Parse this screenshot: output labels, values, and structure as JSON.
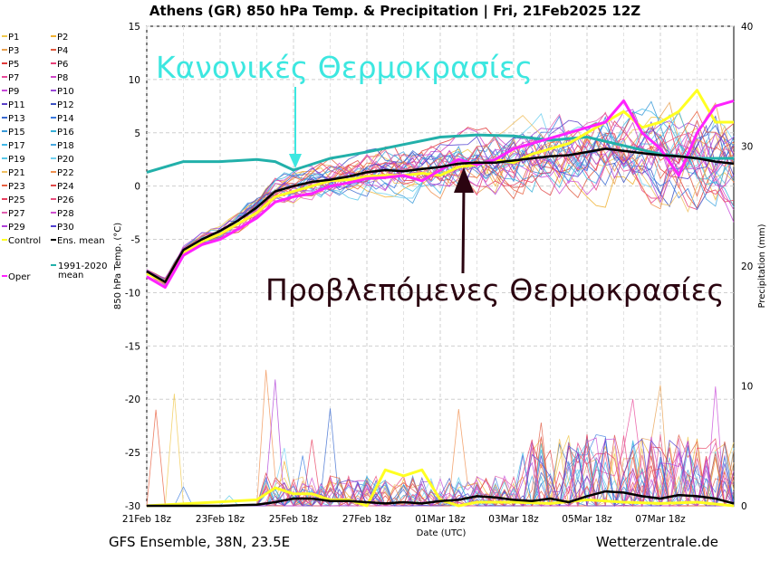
{
  "title": "Athens  (GR)  850 hPa Temp. & Precipitation | Fri, 21Feb2025 12Z",
  "footer_left": "GFS Ensemble, 38N, 23.5E",
  "footer_right": "Wetterzentrale.de",
  "colors": {
    "oper": "#ff22ff",
    "control": "#ffff22",
    "ens_mean": "#000000",
    "climate_mean": "#22b0aa",
    "annotation_normal": "#3de7e0",
    "annotation_forecast": "#2b0410"
  },
  "annotations": {
    "normal": "Κανονικές Θερμοκρασίες",
    "forecast": "Προβλεπόμενες Θερμοκρασίες"
  },
  "chart_data": {
    "type": "line",
    "xlabel": "Date (UTC)",
    "ylabel_left": "850 hPa Temp. (°C)",
    "ylabel_right": "Precipitation (mm)",
    "ylim_left": [
      -30,
      15
    ],
    "ylim_right": [
      0,
      40
    ],
    "yticks_left": [
      15,
      10,
      5,
      0,
      -5,
      -10,
      -15,
      -20,
      -25,
      -30
    ],
    "yticks_right": [
      40,
      30,
      20,
      10,
      0
    ],
    "x_tick_labels": [
      "21Feb 18z",
      "23Feb 18z",
      "25Feb 18z",
      "27Feb 18z",
      "01Mar 18z",
      "03Mar 18z",
      "05Mar 18z",
      "07Mar 18z"
    ],
    "grid": true,
    "legend_placement": "left",
    "legend": [
      {
        "name": "P1",
        "color": "#f0c84c"
      },
      {
        "name": "P2",
        "color": "#f0b030"
      },
      {
        "name": "P3",
        "color": "#e8a050"
      },
      {
        "name": "P4",
        "color": "#e05a40"
      },
      {
        "name": "P5",
        "color": "#e03a3a"
      },
      {
        "name": "P6",
        "color": "#e8407a"
      },
      {
        "name": "P7",
        "color": "#e84a9a"
      },
      {
        "name": "P8",
        "color": "#d048c8"
      },
      {
        "name": "P9",
        "color": "#c84ad8"
      },
      {
        "name": "P10",
        "color": "#9a48d8"
      },
      {
        "name": "P11",
        "color": "#5a40c8"
      },
      {
        "name": "P12",
        "color": "#3a50c0"
      },
      {
        "name": "P13",
        "color": "#3a6ad0"
      },
      {
        "name": "P14",
        "color": "#3a7ae0"
      },
      {
        "name": "P15",
        "color": "#3a9ad8"
      },
      {
        "name": "P16",
        "color": "#38b0d8"
      },
      {
        "name": "P17",
        "color": "#40b8e8"
      },
      {
        "name": "P18",
        "color": "#48a8e0"
      },
      {
        "name": "P19",
        "color": "#58c8e8"
      },
      {
        "name": "P20",
        "color": "#70d0f0"
      },
      {
        "name": "P21",
        "color": "#f0c060"
      },
      {
        "name": "P22",
        "color": "#f09050"
      },
      {
        "name": "P23",
        "color": "#e86040"
      },
      {
        "name": "P24",
        "color": "#e04848"
      },
      {
        "name": "P25",
        "color": "#e84060"
      },
      {
        "name": "P26",
        "color": "#e85080"
      },
      {
        "name": "P27",
        "color": "#e060b0"
      },
      {
        "name": "P28",
        "color": "#d050d0"
      },
      {
        "name": "P29",
        "color": "#b040d8"
      },
      {
        "name": "P30",
        "color": "#5040d0"
      },
      {
        "name": "Control",
        "color": "#ffff22"
      },
      {
        "name": "Ens. mean",
        "color": "#000000"
      },
      {
        "name": "Oper",
        "color": "#ff22ff"
      },
      {
        "name": "1991-2020 mean",
        "color": "#22b0aa"
      }
    ],
    "series": [
      {
        "name": "Ens. mean",
        "unit": "C",
        "x": [
          0,
          0.5,
          1,
          1.5,
          2,
          2.5,
          3,
          3.5,
          4,
          4.5,
          5,
          5.5,
          6,
          6.5,
          7,
          7.5,
          8,
          8.5,
          9,
          9.5,
          10,
          10.5,
          11,
          11.5,
          12,
          12.5,
          13,
          13.5,
          14,
          14.5,
          15,
          15.5,
          16
        ],
        "values": [
          -8,
          -9,
          -6,
          -5,
          -4.2,
          -3.2,
          -2,
          -0.5,
          0,
          0.4,
          0.6,
          0.9,
          1.3,
          1.5,
          1.4,
          1.6,
          1.8,
          2.1,
          2.2,
          2.2,
          2.4,
          2.6,
          2.8,
          2.9,
          3.2,
          3.5,
          3.3,
          3.1,
          2.9,
          2.8,
          2.6,
          2.3,
          2.1
        ]
      },
      {
        "name": "Oper",
        "unit": "C",
        "x": [
          0,
          0.5,
          1,
          1.5,
          2,
          2.5,
          3,
          3.5,
          4,
          4.5,
          5,
          5.5,
          6,
          6.5,
          7,
          7.5,
          8,
          8.5,
          9,
          9.5,
          10,
          10.5,
          11,
          11.5,
          12,
          12.5,
          13,
          13.5,
          14,
          14.5,
          15,
          15.5,
          16
        ],
        "values": [
          -8.5,
          -9.5,
          -6.5,
          -5.5,
          -5,
          -4,
          -3,
          -1.5,
          -1,
          -0.7,
          0,
          0.3,
          0.7,
          0.8,
          1,
          0.5,
          1.5,
          2.5,
          2,
          2.5,
          3.5,
          4,
          4.5,
          5,
          5.5,
          6,
          8,
          5,
          3.5,
          1,
          5,
          7.5,
          8
        ]
      },
      {
        "name": "Control",
        "unit": "C",
        "x": [
          0,
          0.5,
          1,
          1.5,
          2,
          2.5,
          3,
          3.5,
          4,
          4.5,
          5,
          5.5,
          6,
          6.5,
          7,
          7.5,
          8,
          8.5,
          9,
          9.5,
          10,
          10.5,
          11,
          11.5,
          12,
          12.5,
          13,
          13.5,
          14,
          14.5,
          15,
          15.5,
          16
        ],
        "values": [
          -8.2,
          -9,
          -6.2,
          -5.2,
          -4.5,
          -3.5,
          -2.5,
          -1,
          -0.5,
          0,
          0.5,
          0.6,
          0.9,
          1,
          1,
          1.2,
          1,
          1.8,
          2,
          2.5,
          2.2,
          3,
          3.5,
          4,
          5,
          6,
          7,
          5.5,
          6,
          7,
          9,
          6,
          6
        ]
      },
      {
        "name": "1991-2020 mean",
        "unit": "C",
        "x": [
          0,
          1,
          2,
          3,
          3.5,
          4,
          5,
          6,
          7,
          8,
          9,
          10,
          11,
          12,
          13,
          14,
          15,
          16
        ],
        "values": [
          1.3,
          2.3,
          2.3,
          2.5,
          2.3,
          1.5,
          2.6,
          3.2,
          3.9,
          4.6,
          4.8,
          4.7,
          4.3,
          4.6,
          3.8,
          3.0,
          2.6,
          2.6
        ]
      },
      {
        "name": "Ens. mean precipitation",
        "unit": "mm",
        "x": [
          0,
          1,
          2,
          3,
          3.5,
          4,
          4.5,
          5,
          5.5,
          6,
          6.5,
          7,
          7.5,
          8,
          8.5,
          9,
          9.5,
          10,
          10.5,
          11,
          11.5,
          12,
          12.5,
          13,
          13.5,
          14,
          14.5,
          15,
          15.5,
          16
        ],
        "values": [
          0,
          0,
          0,
          0.1,
          0.3,
          0.6,
          0.6,
          0.4,
          0.4,
          0.3,
          0.2,
          0.3,
          0.2,
          0.4,
          0.5,
          0.8,
          0.7,
          0.5,
          0.4,
          0.6,
          0.3,
          0.8,
          1.2,
          1.1,
          0.8,
          0.6,
          0.9,
          0.8,
          0.6,
          0.2
        ]
      },
      {
        "name": "Control precipitation",
        "unit": "mm",
        "x": [
          0,
          3,
          3.5,
          4,
          4.5,
          5,
          5.5,
          6,
          6.5,
          7,
          7.5,
          8,
          8.5,
          9,
          10,
          11,
          12,
          13,
          14,
          15,
          16
        ],
        "values": [
          0,
          0.5,
          1.5,
          1,
          1,
          0.5,
          0.5,
          0,
          3,
          2.5,
          3,
          0.5,
          0,
          0.3,
          0.3,
          0.2,
          0.5,
          0.3,
          0.2,
          0.3,
          0
        ]
      }
    ]
  }
}
